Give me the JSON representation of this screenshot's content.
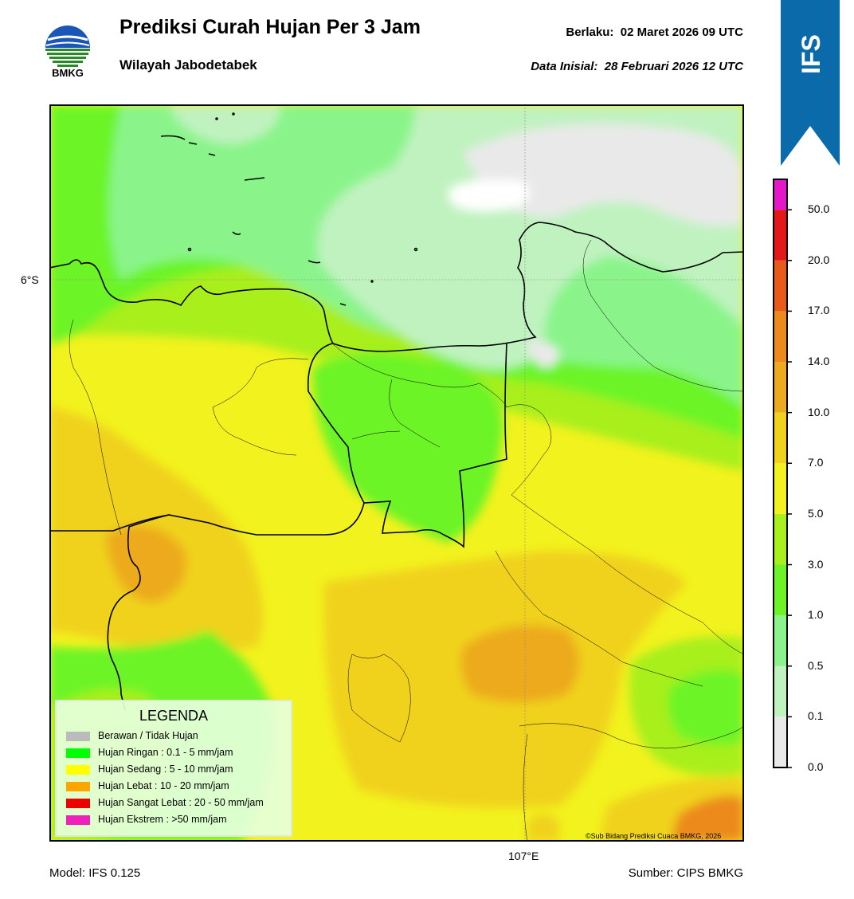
{
  "header": {
    "title": "Prediksi Curah Hujan Per 3 Jam",
    "subtitle": "Wilayah Jabodetabek",
    "valid_label": "Berlaku:",
    "valid_value": "02 Maret 2026 09 UTC",
    "initial_label": "Data Inisial:",
    "initial_value": "28 Februari 2026 12 UTC",
    "logo_text": "BMKG",
    "ribbon_text": "IFS"
  },
  "map": {
    "lat_label": "6°S",
    "lon_label": "107°E",
    "credit": "©Sub Bidang Prediksi Cuaca BMKG, 2026"
  },
  "footer": {
    "model": "Model: IFS 0.125",
    "source": "Sumber: CIPS BMKG"
  },
  "colorbar": {
    "ticks": [
      "0.0",
      "0.1",
      "0.5",
      "1.0",
      "3.0",
      "5.0",
      "7.0",
      "10.0",
      "14.0",
      "17.0",
      "20.0",
      "50.0"
    ],
    "colors": [
      "#e9e9e9",
      "#c0f2c0",
      "#8af48a",
      "#6cf428",
      "#a8ef1e",
      "#f2f21e",
      "#f0d21c",
      "#ecaa1e",
      "#ec8a1e",
      "#e85a1a",
      "#e41818",
      "#e418c8"
    ]
  },
  "legend": {
    "title": "LEGENDA",
    "items": [
      {
        "label": "Berawan / Tidak Hujan",
        "color": "#bbbbbb"
      },
      {
        "label": "Hujan Ringan : 0.1 - 5 mm/jam",
        "color": "#00ff00"
      },
      {
        "label": "Hujan Sedang : 5 - 10 mm/jam",
        "color": "#ffff00"
      },
      {
        "label": "Hujan Lebat : 10 - 20 mm/jam",
        "color": "#ffa500"
      },
      {
        "label": "Hujan Sangat Lebat : 20 - 50 mm/jam",
        "color": "#ee0000"
      },
      {
        "label": "Hujan Ekstrem : >50 mm/jam",
        "color": "#ee22bb"
      }
    ]
  }
}
